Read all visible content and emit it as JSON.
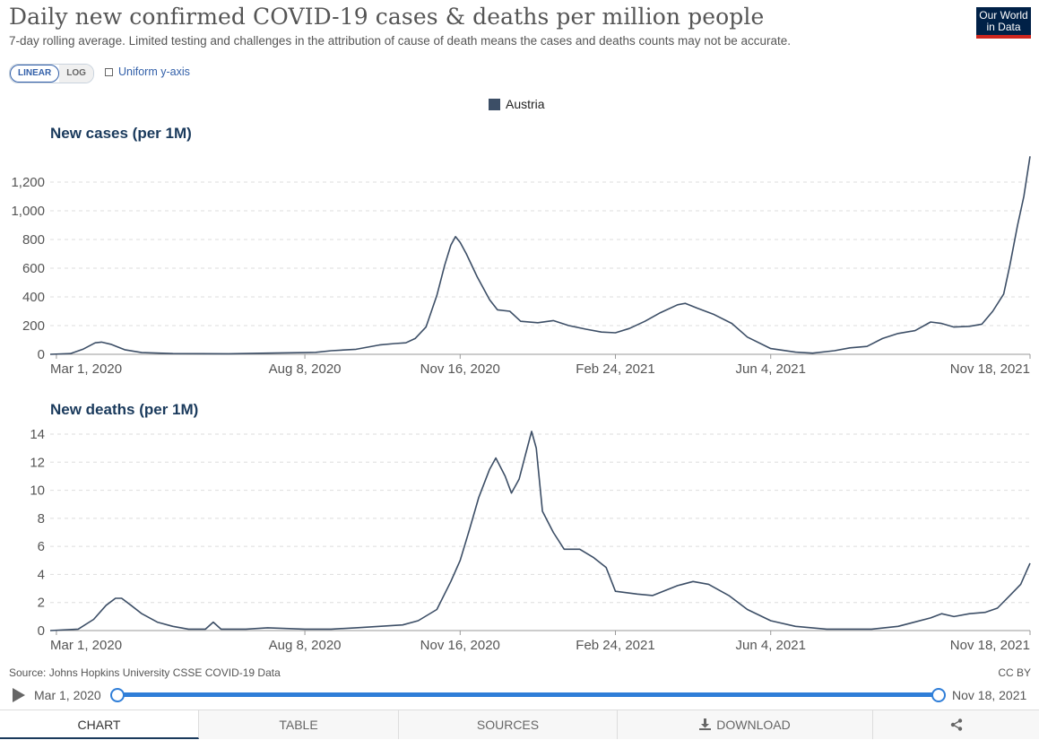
{
  "header": {
    "title": "Daily new confirmed COVID-19 cases & deaths per million people",
    "subtitle": "7-day rolling average. Limited testing and challenges in the attribution of cause of death means the cases and deaths counts may not be accurate.",
    "logo_line1": "Our World",
    "logo_line2": "in Data"
  },
  "controls": {
    "linear_label": "LINEAR",
    "log_label": "LOG",
    "uniform_label": "Uniform y-axis",
    "scale": "linear"
  },
  "legend": {
    "label": "Austria",
    "color": "#3c4e66"
  },
  "chart_data": [
    {
      "type": "line",
      "title": "New cases (per 1M)",
      "x_ticks": [
        "Mar 1, 2020",
        "Aug 8, 2020",
        "Nov 16, 2020",
        "Feb 24, 2021",
        "Jun 4, 2021",
        "Nov 18, 2021"
      ],
      "y_ticks": [
        "0",
        "200",
        "400",
        "600",
        "800",
        "1,000",
        "1,200"
      ],
      "ylim": [
        0,
        1200
      ],
      "grid": true,
      "series": [
        {
          "name": "Austria",
          "color": "#3c4e66",
          "points": [
            [
              "2020-02-26",
              0
            ],
            [
              "2020-03-10",
              5
            ],
            [
              "2020-03-18",
              35
            ],
            [
              "2020-03-26",
              80
            ],
            [
              "2020-03-30",
              85
            ],
            [
              "2020-04-05",
              70
            ],
            [
              "2020-04-14",
              32
            ],
            [
              "2020-04-25",
              12
            ],
            [
              "2020-05-15",
              5
            ],
            [
              "2020-06-20",
              4
            ],
            [
              "2020-07-15",
              8
            ],
            [
              "2020-08-08",
              12
            ],
            [
              "2020-08-15",
              14
            ],
            [
              "2020-08-25",
              25
            ],
            [
              "2020-09-10",
              35
            ],
            [
              "2020-09-25",
              65
            ],
            [
              "2020-10-05",
              75
            ],
            [
              "2020-10-12",
              80
            ],
            [
              "2020-10-18",
              110
            ],
            [
              "2020-10-25",
              190
            ],
            [
              "2020-11-01",
              410
            ],
            [
              "2020-11-06",
              620
            ],
            [
              "2020-11-10",
              760
            ],
            [
              "2020-11-13",
              820
            ],
            [
              "2020-11-16",
              780
            ],
            [
              "2020-11-20",
              700
            ],
            [
              "2020-11-27",
              540
            ],
            [
              "2020-12-05",
              380
            ],
            [
              "2020-12-10",
              310
            ],
            [
              "2020-12-18",
              300
            ],
            [
              "2020-12-25",
              230
            ],
            [
              "2021-01-05",
              220
            ],
            [
              "2021-01-15",
              235
            ],
            [
              "2021-01-25",
              200
            ],
            [
              "2021-02-05",
              175
            ],
            [
              "2021-02-15",
              155
            ],
            [
              "2021-02-24",
              150
            ],
            [
              "2021-03-05",
              180
            ],
            [
              "2021-03-15",
              230
            ],
            [
              "2021-03-25",
              290
            ],
            [
              "2021-04-05",
              345
            ],
            [
              "2021-04-10",
              355
            ],
            [
              "2021-04-18",
              320
            ],
            [
              "2021-04-28",
              280
            ],
            [
              "2021-05-10",
              215
            ],
            [
              "2021-05-20",
              120
            ],
            [
              "2021-06-04",
              40
            ],
            [
              "2021-06-20",
              15
            ],
            [
              "2021-07-01",
              8
            ],
            [
              "2021-07-15",
              25
            ],
            [
              "2021-07-25",
              45
            ],
            [
              "2021-08-05",
              55
            ],
            [
              "2021-08-15",
              110
            ],
            [
              "2021-08-25",
              145
            ],
            [
              "2021-09-05",
              165
            ],
            [
              "2021-09-15",
              225
            ],
            [
              "2021-09-22",
              215
            ],
            [
              "2021-09-30",
              190
            ],
            [
              "2021-10-10",
              195
            ],
            [
              "2021-10-18",
              210
            ],
            [
              "2021-10-25",
              300
            ],
            [
              "2021-11-01",
              420
            ],
            [
              "2021-11-05",
              620
            ],
            [
              "2021-11-10",
              900
            ],
            [
              "2021-11-14",
              1100
            ],
            [
              "2021-11-18",
              1380
            ]
          ]
        }
      ]
    },
    {
      "type": "line",
      "title": "New deaths (per 1M)",
      "x_ticks": [
        "Mar 1, 2020",
        "Aug 8, 2020",
        "Nov 16, 2020",
        "Feb 24, 2021",
        "Jun 4, 2021",
        "Nov 18, 2021"
      ],
      "y_ticks": [
        "0",
        "2",
        "4",
        "6",
        "8",
        "10",
        "12",
        "14"
      ],
      "ylim": [
        0,
        14
      ],
      "grid": true,
      "series": [
        {
          "name": "Austria",
          "color": "#3c4e66",
          "points": [
            [
              "2020-02-26",
              0
            ],
            [
              "2020-03-15",
              0.1
            ],
            [
              "2020-03-25",
              0.8
            ],
            [
              "2020-04-02",
              1.8
            ],
            [
              "2020-04-08",
              2.3
            ],
            [
              "2020-04-12",
              2.3
            ],
            [
              "2020-04-18",
              1.8
            ],
            [
              "2020-04-25",
              1.2
            ],
            [
              "2020-05-05",
              0.6
            ],
            [
              "2020-05-15",
              0.3
            ],
            [
              "2020-05-25",
              0.1
            ],
            [
              "2020-06-05",
              0.1
            ],
            [
              "2020-06-10",
              0.6
            ],
            [
              "2020-06-15",
              0.1
            ],
            [
              "2020-07-01",
              0.1
            ],
            [
              "2020-07-15",
              0.2
            ],
            [
              "2020-08-08",
              0.1
            ],
            [
              "2020-08-25",
              0.1
            ],
            [
              "2020-09-10",
              0.2
            ],
            [
              "2020-09-25",
              0.3
            ],
            [
              "2020-10-10",
              0.4
            ],
            [
              "2020-10-20",
              0.7
            ],
            [
              "2020-11-01",
              1.5
            ],
            [
              "2020-11-10",
              3.5
            ],
            [
              "2020-11-16",
              5.0
            ],
            [
              "2020-11-22",
              7.2
            ],
            [
              "2020-11-28",
              9.5
            ],
            [
              "2020-12-05",
              11.5
            ],
            [
              "2020-12-09",
              12.3
            ],
            [
              "2020-12-15",
              11.0
            ],
            [
              "2020-12-19",
              9.8
            ],
            [
              "2020-12-24",
              10.8
            ],
            [
              "2020-12-28",
              12.5
            ],
            [
              "2021-01-01",
              14.2
            ],
            [
              "2021-01-04",
              13.0
            ],
            [
              "2021-01-08",
              8.5
            ],
            [
              "2021-01-15",
              7.0
            ],
            [
              "2021-01-22",
              5.8
            ],
            [
              "2021-02-01",
              5.8
            ],
            [
              "2021-02-10",
              5.2
            ],
            [
              "2021-02-18",
              4.5
            ],
            [
              "2021-02-24",
              2.8
            ],
            [
              "2021-03-10",
              2.6
            ],
            [
              "2021-03-20",
              2.5
            ],
            [
              "2021-04-05",
              3.2
            ],
            [
              "2021-04-15",
              3.5
            ],
            [
              "2021-04-25",
              3.3
            ],
            [
              "2021-05-08",
              2.5
            ],
            [
              "2021-05-20",
              1.5
            ],
            [
              "2021-06-04",
              0.7
            ],
            [
              "2021-06-20",
              0.3
            ],
            [
              "2021-07-10",
              0.1
            ],
            [
              "2021-08-08",
              0.1
            ],
            [
              "2021-08-25",
              0.3
            ],
            [
              "2021-09-15",
              0.9
            ],
            [
              "2021-09-22",
              1.2
            ],
            [
              "2021-09-30",
              1.0
            ],
            [
              "2021-10-10",
              1.2
            ],
            [
              "2021-10-20",
              1.3
            ],
            [
              "2021-10-28",
              1.6
            ],
            [
              "2021-11-05",
              2.5
            ],
            [
              "2021-11-12",
              3.3
            ],
            [
              "2021-11-18",
              4.8
            ]
          ]
        }
      ]
    }
  ],
  "footer": {
    "source": "Source: Johns Hopkins University CSSE COVID-19 Data",
    "license": "CC BY"
  },
  "timeline": {
    "start_label": "Mar 1, 2020",
    "end_label": "Nov 18, 2021"
  },
  "tabs": [
    {
      "label": "CHART",
      "active": true
    },
    {
      "label": "TABLE",
      "active": false
    },
    {
      "label": "SOURCES",
      "active": false
    },
    {
      "label": "DOWNLOAD",
      "active": false
    },
    {
      "label": "",
      "active": false
    }
  ]
}
